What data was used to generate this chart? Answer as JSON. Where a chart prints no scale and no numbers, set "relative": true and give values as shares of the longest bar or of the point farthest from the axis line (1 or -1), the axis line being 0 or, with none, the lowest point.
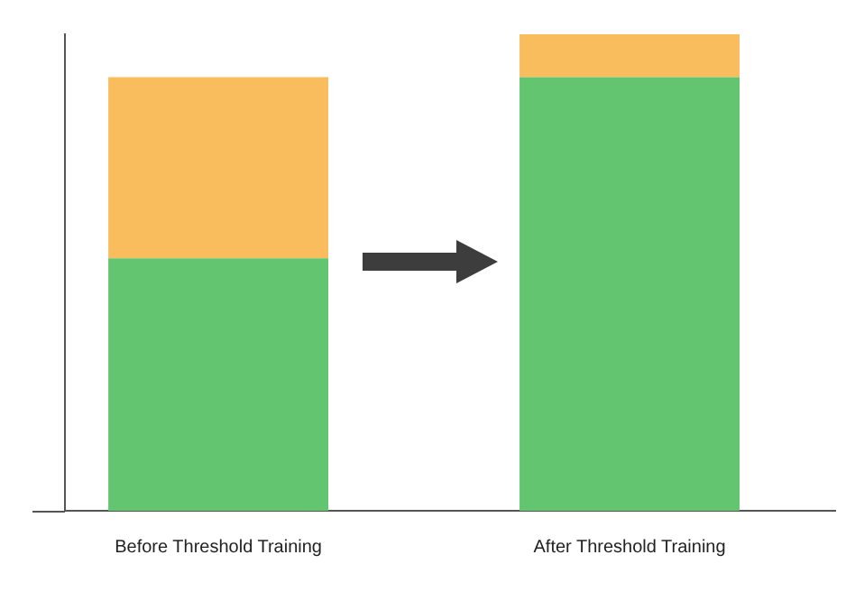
{
  "chart_data": {
    "type": "bar",
    "categories": [
      "Before Threshold Training",
      "After Threshold Training"
    ],
    "stacked": true,
    "relative": true,
    "series": [
      {
        "color": "#63c56f",
        "values": [
          0.53,
          0.91
        ]
      },
      {
        "color": "#f9bd5e",
        "values": [
          0.38,
          0.09
        ]
      }
    ]
  }
}
